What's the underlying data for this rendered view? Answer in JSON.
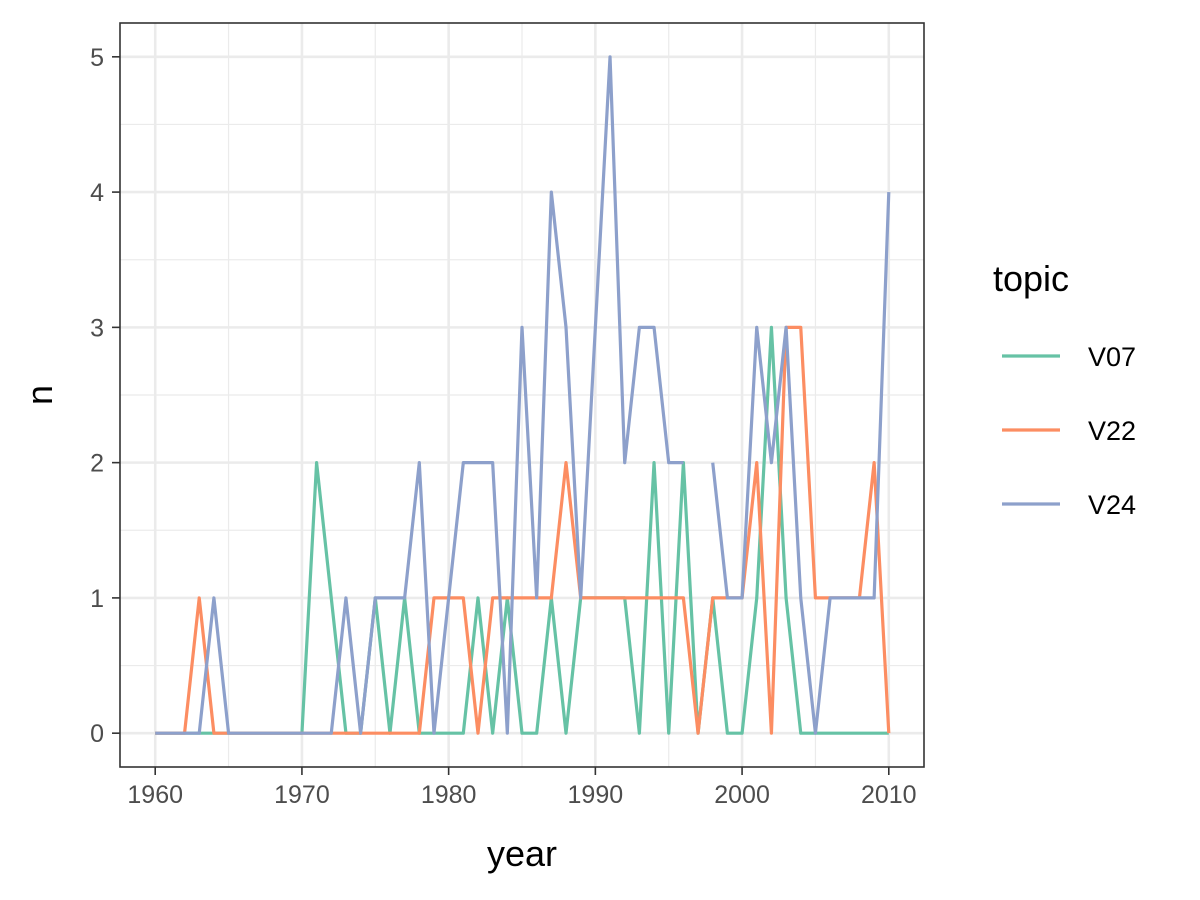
{
  "chart_data": {
    "type": "line",
    "xlabel": "year",
    "ylabel": "n",
    "xlim": [
      1957.6,
      2012.4
    ],
    "ylim": [
      -0.25,
      5.25
    ],
    "xticks": [
      1960,
      1970,
      1980,
      1990,
      2000,
      2010
    ],
    "yticks": [
      0,
      1,
      2,
      3,
      4,
      5
    ],
    "grid": true,
    "legend": {
      "title": "topic",
      "position": "right"
    },
    "colors": {
      "V07": "#66c2a5",
      "V22": "#fc8d62",
      "V24": "#8da0cb"
    },
    "series": [
      {
        "name": "V07",
        "x": [
          1960,
          1961,
          1962,
          1963,
          1964,
          1965,
          1966,
          1967,
          1968,
          1969,
          1970,
          1971,
          1972,
          1973,
          1974,
          1975,
          1976,
          1977,
          1978,
          1979,
          1980,
          1981,
          1982,
          1983,
          1984,
          1985,
          1986,
          1987,
          1988,
          1989,
          1990,
          1991,
          1992,
          1993,
          1994,
          1995,
          1996,
          1997,
          1998,
          1999,
          2000,
          2001,
          2002,
          2003,
          2004,
          2005,
          2006,
          2007,
          2008,
          2009,
          2010
        ],
        "values": [
          0,
          0,
          0,
          0,
          0,
          0,
          0,
          0,
          0,
          0,
          0,
          2,
          1,
          0,
          0,
          1,
          0,
          1,
          0,
          0,
          0,
          0,
          1,
          0,
          1,
          0,
          0,
          1,
          0,
          1,
          1,
          1,
          1,
          0,
          2,
          0,
          2,
          0,
          1,
          0,
          0,
          1,
          3,
          1,
          0,
          0,
          0,
          0,
          0,
          0,
          0
        ]
      },
      {
        "name": "V22",
        "x": [
          1960,
          1961,
          1962,
          1963,
          1964,
          1965,
          1966,
          1967,
          1968,
          1969,
          1970,
          1971,
          1972,
          1973,
          1974,
          1975,
          1976,
          1977,
          1978,
          1979,
          1980,
          1981,
          1982,
          1983,
          1984,
          1985,
          1986,
          1987,
          1988,
          1989,
          1990,
          1991,
          1992,
          1993,
          1994,
          1995,
          1996,
          1997,
          1998,
          1999,
          2000,
          2001,
          2002,
          2003,
          2004,
          2005,
          2006,
          2007,
          2008,
          2009,
          2010
        ],
        "values": [
          0,
          0,
          0,
          1,
          0,
          0,
          0,
          0,
          0,
          0,
          0,
          0,
          0,
          0,
          0,
          0,
          0,
          0,
          0,
          1,
          1,
          1,
          0,
          1,
          1,
          1,
          1,
          1,
          2,
          1,
          1,
          1,
          1,
          1,
          1,
          1,
          1,
          0,
          1,
          1,
          1,
          2,
          0,
          3,
          3,
          1,
          1,
          1,
          1,
          2,
          0
        ]
      },
      {
        "name": "V24",
        "x": [
          1960,
          1961,
          1962,
          1963,
          1964,
          1965,
          1966,
          1967,
          1968,
          1969,
          1970,
          1971,
          1972,
          1973,
          1974,
          1975,
          1976,
          1977,
          1978,
          1979,
          1980,
          1981,
          1982,
          1983,
          1984,
          1985,
          1986,
          1987,
          1988,
          1989,
          1990,
          1991,
          1992,
          1993,
          1994,
          1995,
          1996,
          null,
          1998,
          1999,
          2000,
          2001,
          2002,
          2003,
          2004,
          2005,
          2006,
          2007,
          2008,
          2009,
          2010
        ],
        "values": [
          0,
          0,
          0,
          0,
          1,
          0,
          0,
          0,
          0,
          0,
          0,
          0,
          0,
          1,
          0,
          1,
          1,
          1,
          2,
          0,
          1,
          2,
          2,
          2,
          0,
          3,
          1,
          4,
          3,
          1,
          3,
          5,
          2,
          3,
          3,
          2,
          2,
          null,
          2,
          1,
          1,
          3,
          2,
          3,
          1,
          0,
          1,
          1,
          1,
          1,
          4
        ]
      }
    ]
  }
}
